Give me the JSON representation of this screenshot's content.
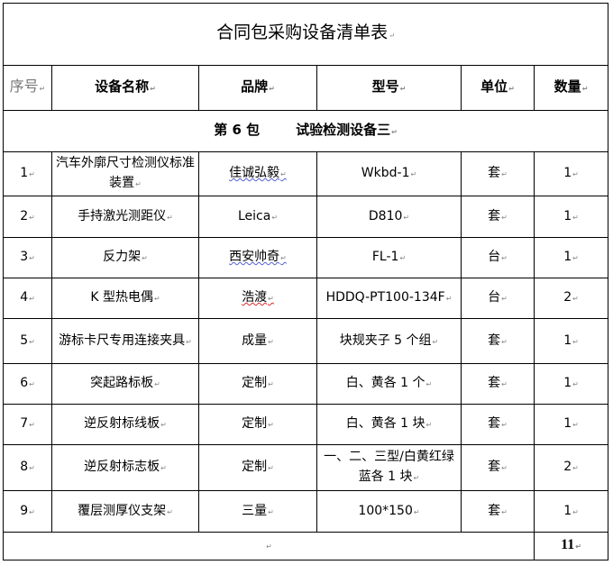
{
  "title": "合同包采购设备清单表",
  "headers": {
    "seq": "序号",
    "name": "设备名称",
    "brand": "品牌",
    "model": "型号",
    "unit": "单位",
    "qty": "数量"
  },
  "package": {
    "number": "第 6 包",
    "name": "试验检测设备三"
  },
  "rows": [
    {
      "seq": "1",
      "name": "汽车外廓尺寸检测仪标准装置",
      "brand": "佳诚弘毅",
      "model": "Wkbd-1",
      "unit": "套",
      "qty": "1"
    },
    {
      "seq": "2",
      "name": "手持激光测距仪",
      "brand": "Leica",
      "model": "D810",
      "unit": "套",
      "qty": "1"
    },
    {
      "seq": "3",
      "name": "反力架",
      "brand": "西安帅奇",
      "model": "FL-1",
      "unit": "台",
      "qty": "1"
    },
    {
      "seq": "4",
      "name": "K 型热电偶",
      "brand": "浩渡",
      "model": "HDDQ-PT100-134F",
      "unit": "台",
      "qty": "2"
    },
    {
      "seq": "5",
      "name": "游标卡尺专用连接夹具",
      "brand": "成量",
      "model": "块规夹子 5 个组",
      "unit": "套",
      "qty": "1"
    },
    {
      "seq": "6",
      "name": "突起路标板",
      "brand": "定制",
      "model": "白、黄各 1 个",
      "unit": "套",
      "qty": "1"
    },
    {
      "seq": "7",
      "name": "逆反射标线板",
      "brand": "定制",
      "model": "白、黄各 1 块",
      "unit": "套",
      "qty": "1"
    },
    {
      "seq": "8",
      "name": "逆反射标志板",
      "brand": "定制",
      "model": "一、二、三型/白黄红绿蓝各 1 块",
      "unit": "套",
      "qty": "2"
    },
    {
      "seq": "9",
      "name": "覆层测厚仪支架",
      "brand": "三量",
      "model": "100*150",
      "unit": "套",
      "qty": "1"
    }
  ],
  "total": {
    "label": "",
    "qty": "11"
  }
}
